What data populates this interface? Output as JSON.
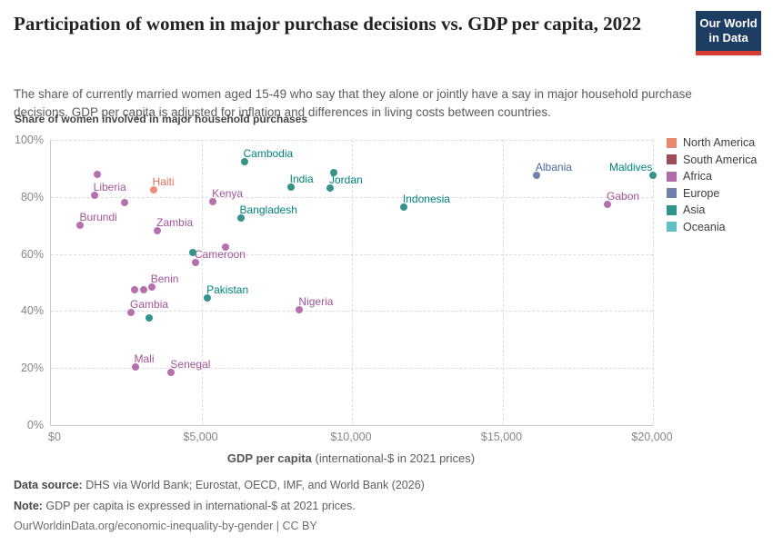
{
  "header": {
    "title": "Participation of women in major purchase decisions vs. GDP per capita, 2022",
    "subtitle": "The share of currently married women aged 15-49 who say that they alone or jointly have a say in major household purchase decisions. GDP per capita is adjusted for inflation and differences in living costs between countries.",
    "logo": {
      "line1": "Our World",
      "line2": "in Data"
    }
  },
  "chart": {
    "y_axis_title": "Share of women involved in major household purchases",
    "x_title_main": "GDP per capita",
    "x_title_rest": " (international-$ in 2021 prices)"
  },
  "legend": {
    "items": [
      {
        "label": "North America",
        "color": "#E9876F"
      },
      {
        "label": "South America",
        "color": "#9E4E57"
      },
      {
        "label": "Africa",
        "color": "#B16CAD"
      },
      {
        "label": "Europe",
        "color": "#6D80AE"
      },
      {
        "label": "Asia",
        "color": "#2E948C"
      },
      {
        "label": "Oceania",
        "color": "#5FBFC9"
      }
    ]
  },
  "footer": {
    "source_label": "Data source:",
    "source_text": " DHS via World Bank; Eurostat, OECD, IMF, and World Bank (2026)",
    "note_label": "Note:",
    "note_text": " GDP per capita is expressed in international-$ at 2021 prices.",
    "url_line": "OurWorldinData.org/economic-inequality-by-gender | CC BY"
  },
  "chart_data": {
    "type": "scatter",
    "title": "Participation of women in major purchase decisions vs. GDP per capita, 2022",
    "xlabel": "GDP per capita (international-$ in 2021 prices)",
    "ylabel": "Share of women involved in major household purchases",
    "xlim": [
      0,
      20000
    ],
    "ylim": [
      0,
      100
    ],
    "x_tick_values": [
      0,
      5000,
      10000,
      15000,
      20000
    ],
    "x_tick_labels": [
      "$0",
      "$5,000",
      "$10,000",
      "$15,000",
      "$20,000"
    ],
    "y_tick_values": [
      0,
      20,
      40,
      60,
      80,
      100
    ],
    "y_tick_labels": [
      "0%",
      "20%",
      "40%",
      "60%",
      "80%",
      "100%"
    ],
    "grid": true,
    "legend_position": "right",
    "continent_colors": {
      "North America": {
        "dot": "#ED8E78",
        "label": "#E56E5A"
      },
      "South America": {
        "dot": "#9E4E57",
        "label": "#883039"
      },
      "Africa": {
        "dot": "#B670AE",
        "label": "#A2559C"
      },
      "Europe": {
        "dot": "#6E81AF",
        "label": "#4C6A9C"
      },
      "Asia": {
        "dot": "#35938C",
        "label": "#00847E"
      },
      "Oceania": {
        "dot": "#5FBFC9",
        "label": "#2C8465"
      }
    },
    "points": [
      {
        "name": "Haiti",
        "continent": "North America",
        "gdp": 3400,
        "share": 82.5,
        "labeled": true
      },
      {
        "name": "Burundi",
        "continent": "Africa",
        "gdp": 980,
        "share": 70,
        "labeled": true
      },
      {
        "name": "Liberia",
        "continent": "Africa",
        "gdp": 1440,
        "share": 80.5,
        "labeled": true
      },
      {
        "name": "Zambia",
        "continent": "Africa",
        "gdp": 3540,
        "share": 68,
        "labeled": true
      },
      {
        "name": "Kenya",
        "continent": "Africa",
        "gdp": 5380,
        "share": 78.5,
        "labeled": true
      },
      {
        "name": "Cameroon",
        "continent": "Africa",
        "gdp": 4800,
        "share": 57,
        "labeled": true
      },
      {
        "name": "Benin",
        "continent": "Africa",
        "gdp": 3345,
        "share": 48.5,
        "labeled": true
      },
      {
        "name": "Gambia",
        "continent": "Africa",
        "gdp": 2660,
        "share": 39.5,
        "labeled": true
      },
      {
        "name": "Mali",
        "continent": "Africa",
        "gdp": 2795,
        "share": 20.5,
        "labeled": true
      },
      {
        "name": "Senegal",
        "continent": "Africa",
        "gdp": 4000,
        "share": 18.5,
        "labeled": true
      },
      {
        "name": "Nigeria",
        "continent": "Africa",
        "gdp": 8260,
        "share": 40.5,
        "labeled": true
      },
      {
        "name": "Gabon",
        "continent": "Africa",
        "gdp": 18490,
        "share": 77.5,
        "labeled": true
      },
      {
        "name": "Cambodia",
        "continent": "Asia",
        "gdp": 6420,
        "share": 92.5,
        "labeled": true
      },
      {
        "name": "Bangladesh",
        "continent": "Asia",
        "gdp": 6300,
        "share": 72.5,
        "labeled": true
      },
      {
        "name": "India",
        "continent": "Asia",
        "gdp": 7965,
        "share": 83.5,
        "labeled": true
      },
      {
        "name": "Jordan",
        "continent": "Asia",
        "gdp": 9275,
        "share": 83,
        "labeled": true
      },
      {
        "name": "Indonesia",
        "continent": "Asia",
        "gdp": 11720,
        "share": 76.5,
        "labeled": true
      },
      {
        "name": "Maldives",
        "continent": "Asia",
        "gdp": 20010,
        "share": 87.5,
        "labeled": true,
        "label_side": "left"
      },
      {
        "name": "Pakistan",
        "continent": "Asia",
        "gdp": 5200,
        "share": 44.5,
        "labeled": true
      },
      {
        "name": "Albania",
        "continent": "Europe",
        "gdp": 16130,
        "share": 87.5,
        "labeled": true
      },
      {
        "name": "",
        "continent": "Africa",
        "gdp": 1535,
        "share": 88,
        "labeled": false
      },
      {
        "name": "",
        "continent": "Africa",
        "gdp": 2460,
        "share": 78,
        "labeled": false
      },
      {
        "name": "",
        "continent": "Africa",
        "gdp": 5800,
        "share": 62.5,
        "labeled": false
      },
      {
        "name": "",
        "continent": "Africa",
        "gdp": 2780,
        "share": 47.5,
        "labeled": false
      },
      {
        "name": "",
        "continent": "Africa",
        "gdp": 3085,
        "share": 47.5,
        "labeled": false
      },
      {
        "name": "",
        "continent": "Asia",
        "gdp": 4705,
        "share": 60.5,
        "labeled": false
      },
      {
        "name": "",
        "continent": "Asia",
        "gdp": 3265,
        "share": 37.5,
        "labeled": false
      },
      {
        "name": "",
        "continent": "Asia",
        "gdp": 9405,
        "share": 88.5,
        "labeled": false
      }
    ]
  }
}
